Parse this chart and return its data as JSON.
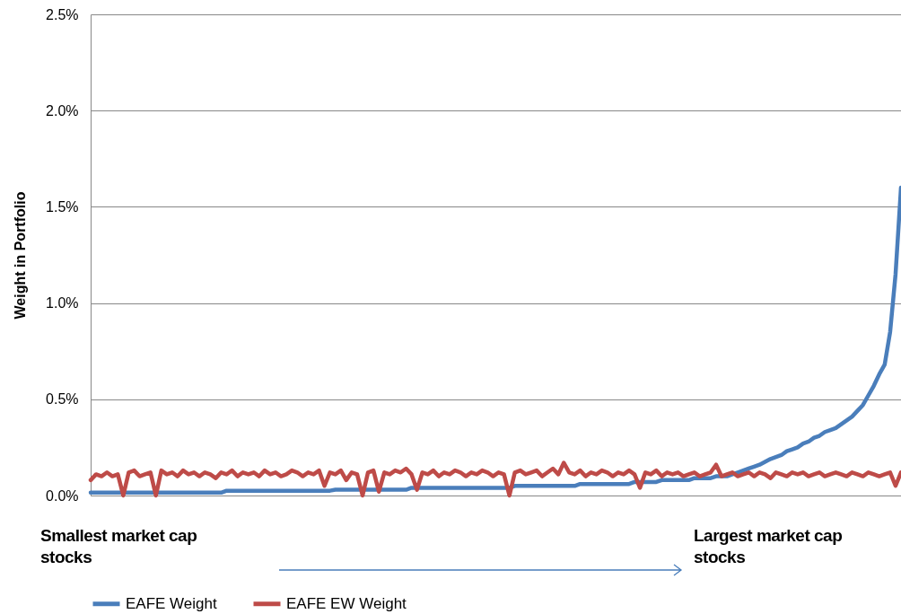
{
  "chart_data": {
    "type": "line",
    "ylabel": "Weight in Portfolio",
    "categories": [
      null,
      null,
      null,
      null,
      null,
      null,
      null,
      null,
      null,
      null,
      null,
      null,
      null,
      null,
      null,
      null,
      null,
      null,
      null,
      null,
      null,
      null,
      null,
      null,
      null,
      null,
      null,
      null,
      null,
      null,
      null,
      null,
      null,
      null,
      null,
      null,
      null,
      null,
      null,
      null,
      null,
      null,
      null,
      null,
      null,
      null,
      null,
      null,
      null,
      null,
      null,
      null,
      null,
      null,
      null,
      null,
      null,
      null,
      null,
      null,
      null,
      null,
      null,
      null,
      null,
      null,
      null,
      null,
      null,
      null,
      null,
      null,
      null,
      null,
      null,
      null,
      null,
      null,
      null,
      null,
      null,
      null,
      null,
      null,
      null,
      null,
      null,
      null,
      null,
      null,
      null,
      null,
      null,
      null,
      null,
      null,
      null,
      null,
      null,
      null,
      null,
      null,
      null,
      null,
      null,
      null,
      null,
      null,
      null,
      null,
      null,
      null,
      null,
      null,
      null,
      null,
      null,
      null,
      null,
      null,
      null,
      null,
      null,
      null,
      null,
      null,
      null,
      null,
      null,
      null,
      null,
      null,
      null,
      null,
      null,
      null,
      null,
      null,
      null,
      null,
      null,
      null,
      null,
      null,
      null,
      null,
      null,
      null,
      null,
      null
    ],
    "series": [
      {
        "name": "EAFE Weight",
        "color": "#4a7ebb",
        "values": [
          0.015,
          0.015,
          0.015,
          0.015,
          0.015,
          0.015,
          0.015,
          0.015,
          0.015,
          0.015,
          0.015,
          0.015,
          0.015,
          0.015,
          0.015,
          0.015,
          0.015,
          0.015,
          0.015,
          0.015,
          0.015,
          0.015,
          0.015,
          0.015,
          0.015,
          0.025,
          0.025,
          0.025,
          0.025,
          0.025,
          0.025,
          0.025,
          0.025,
          0.025,
          0.025,
          0.025,
          0.025,
          0.025,
          0.025,
          0.025,
          0.025,
          0.025,
          0.025,
          0.025,
          0.025,
          0.03,
          0.03,
          0.03,
          0.03,
          0.03,
          0.03,
          0.03,
          0.03,
          0.03,
          0.03,
          0.03,
          0.03,
          0.03,
          0.03,
          0.04,
          0.04,
          0.04,
          0.04,
          0.04,
          0.04,
          0.04,
          0.04,
          0.04,
          0.04,
          0.04,
          0.04,
          0.04,
          0.04,
          0.04,
          0.04,
          0.04,
          0.04,
          0.04,
          0.05,
          0.05,
          0.05,
          0.05,
          0.05,
          0.05,
          0.05,
          0.05,
          0.05,
          0.05,
          0.05,
          0.05,
          0.06,
          0.06,
          0.06,
          0.06,
          0.06,
          0.06,
          0.06,
          0.06,
          0.06,
          0.06,
          0.07,
          0.07,
          0.07,
          0.07,
          0.07,
          0.08,
          0.08,
          0.08,
          0.08,
          0.08,
          0.08,
          0.09,
          0.09,
          0.09,
          0.09,
          0.1,
          0.1,
          0.1,
          0.11,
          0.12,
          0.13,
          0.14,
          0.15,
          0.16,
          0.175,
          0.19,
          0.2,
          0.21,
          0.23,
          0.24,
          0.25,
          0.27,
          0.28,
          0.3,
          0.31,
          0.33,
          0.34,
          0.35,
          0.37,
          0.39,
          0.41,
          0.44,
          0.47,
          0.52,
          0.57,
          0.63,
          0.68,
          0.85,
          1.15,
          1.6
        ]
      },
      {
        "name": "EAFE EW Weight",
        "color": "#be4b48",
        "values": [
          0.08,
          0.11,
          0.1,
          0.12,
          0.1,
          0.11,
          0.0,
          0.12,
          0.13,
          0.1,
          0.11,
          0.12,
          0.0,
          0.13,
          0.11,
          0.12,
          0.1,
          0.13,
          0.11,
          0.12,
          0.1,
          0.12,
          0.11,
          0.09,
          0.12,
          0.11,
          0.13,
          0.1,
          0.12,
          0.11,
          0.12,
          0.1,
          0.13,
          0.11,
          0.12,
          0.1,
          0.11,
          0.13,
          0.12,
          0.1,
          0.12,
          0.11,
          0.13,
          0.05,
          0.12,
          0.11,
          0.13,
          0.08,
          0.12,
          0.11,
          0.0,
          0.12,
          0.13,
          0.02,
          0.12,
          0.11,
          0.13,
          0.12,
          0.14,
          0.11,
          0.03,
          0.12,
          0.11,
          0.13,
          0.1,
          0.12,
          0.11,
          0.13,
          0.12,
          0.1,
          0.12,
          0.11,
          0.13,
          0.12,
          0.1,
          0.12,
          0.11,
          0.0,
          0.12,
          0.13,
          0.11,
          0.12,
          0.13,
          0.1,
          0.12,
          0.14,
          0.11,
          0.17,
          0.12,
          0.11,
          0.13,
          0.1,
          0.12,
          0.11,
          0.13,
          0.12,
          0.1,
          0.12,
          0.11,
          0.13,
          0.11,
          0.04,
          0.12,
          0.11,
          0.13,
          0.1,
          0.12,
          0.11,
          0.12,
          0.1,
          0.11,
          0.12,
          0.1,
          0.11,
          0.12,
          0.16,
          0.1,
          0.11,
          0.12,
          0.1,
          0.11,
          0.12,
          0.1,
          0.12,
          0.11,
          0.09,
          0.12,
          0.11,
          0.1,
          0.12,
          0.11,
          0.12,
          0.1,
          0.11,
          0.12,
          0.1,
          0.11,
          0.12,
          0.11,
          0.1,
          0.12,
          0.11,
          0.1,
          0.12,
          0.11,
          0.1,
          0.11,
          0.12,
          0.05,
          0.12
        ]
      }
    ],
    "ylim": [
      0,
      2.5
    ],
    "yticks": [
      {
        "value": 0,
        "label": "0.0%"
      },
      {
        "value": 0.5,
        "label": "0.5%"
      },
      {
        "value": 1,
        "label": "1.0%"
      },
      {
        "value": 1.5,
        "label": "1.5%"
      },
      {
        "value": 2,
        "label": "2.0%"
      },
      {
        "value": 2.5,
        "label": "2.5%"
      }
    ],
    "grid": "y",
    "legend": "bottom",
    "annotations": [
      "Smallest market cap stocks",
      "Largest market cap stocks"
    ]
  }
}
